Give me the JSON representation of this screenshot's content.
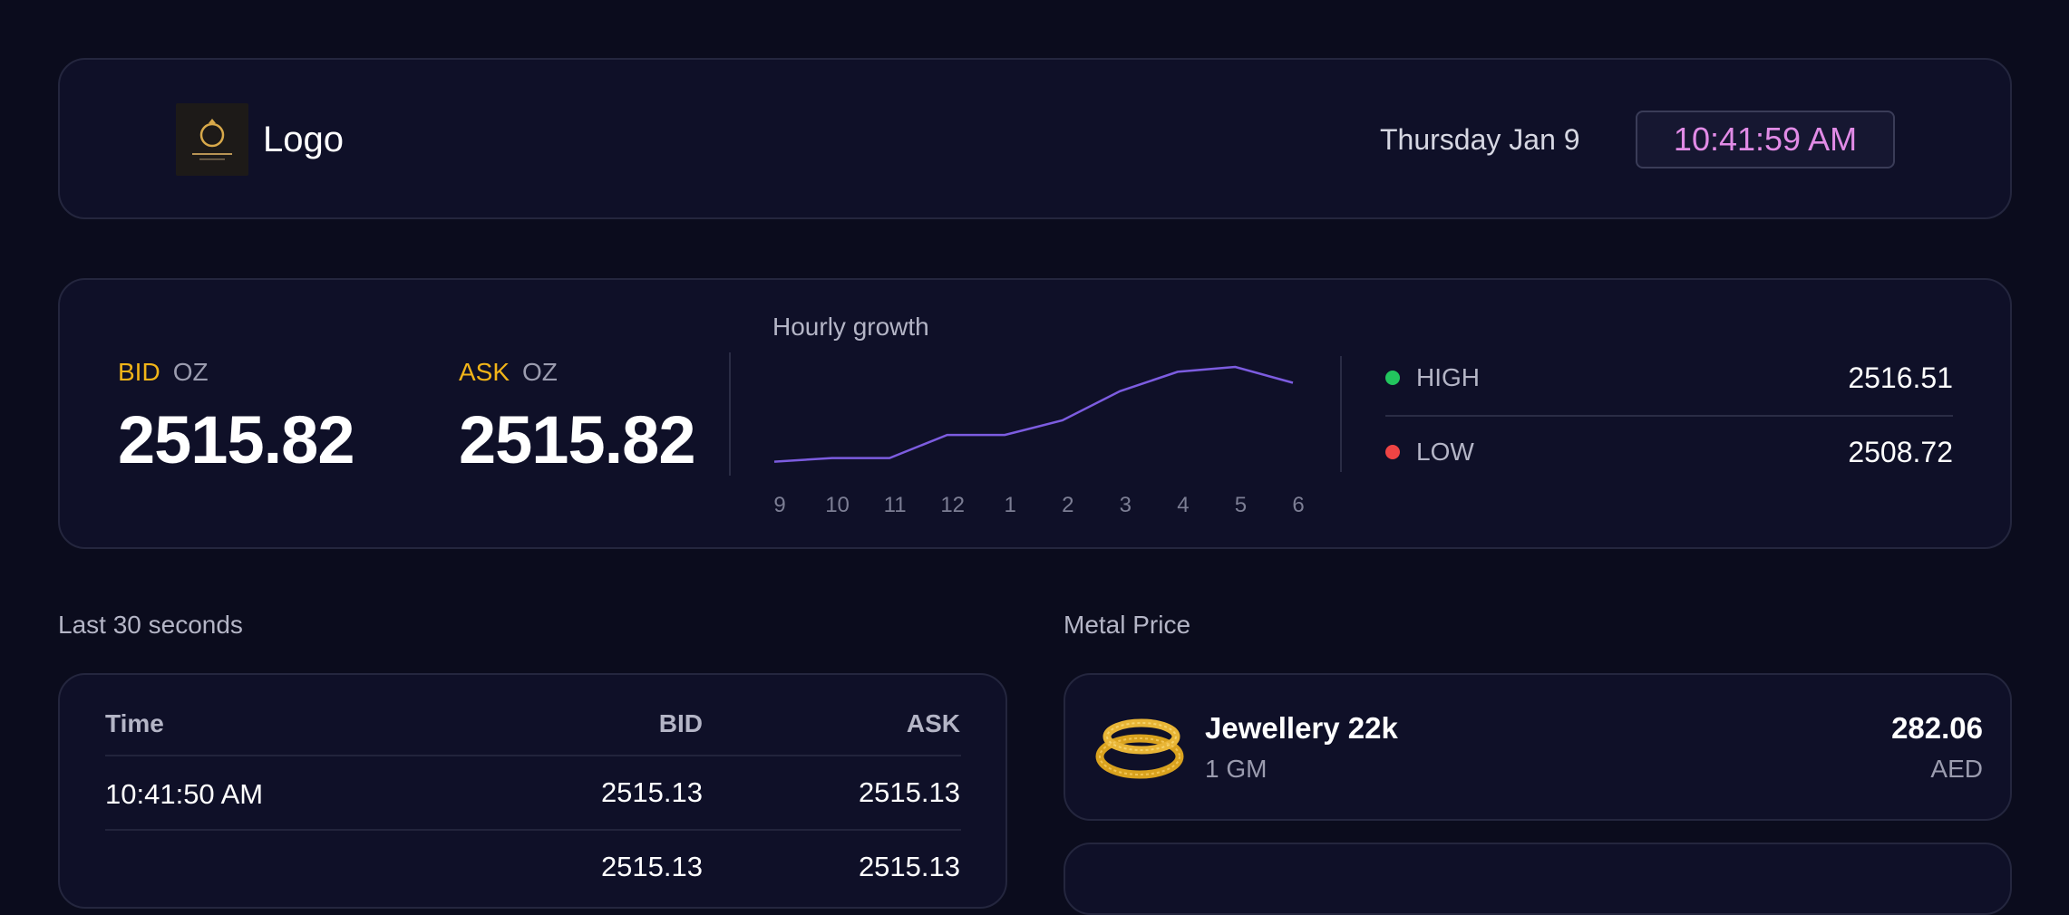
{
  "header": {
    "logo_text": "Logo",
    "date": "Thursday Jan 9",
    "time": "10:41:59 AM"
  },
  "prices": {
    "bid": {
      "label": "BID",
      "unit": "OZ",
      "value": "2515.82"
    },
    "ask": {
      "label": "ASK",
      "unit": "OZ",
      "value": "2515.82"
    },
    "high": {
      "label": "HIGH",
      "value": "2516.51",
      "color": "#22c55e"
    },
    "low": {
      "label": "LOW",
      "value": "2508.72",
      "color": "#ef4444"
    }
  },
  "chart_data": {
    "type": "line",
    "title": "Hourly growth",
    "x": [
      "9",
      "10",
      "11",
      "12",
      "1",
      "2",
      "3",
      "4",
      "5",
      "6"
    ],
    "series": [
      {
        "values": [
          2508.9,
          2509.2,
          2509.2,
          2511.1,
          2511.1,
          2512.3,
          2514.7,
          2516.3,
          2516.7,
          2515.4
        ]
      }
    ],
    "ylim": [
      2508.5,
      2517.0
    ],
    "line_color": "#7c5ce0"
  },
  "history": {
    "title": "Last 30 seconds",
    "headers": {
      "time": "Time",
      "bid": "BID",
      "ask": "ASK"
    },
    "rows": [
      {
        "time": "10:41:50 AM",
        "bid": "2515.13",
        "ask": "2515.13"
      },
      {
        "time": "",
        "bid": "2515.13",
        "ask": "2515.13"
      }
    ]
  },
  "metal": {
    "title": "Metal Price",
    "items": [
      {
        "name": "Jewellery 22k",
        "unit": "1 GM",
        "price": "282.06",
        "currency": "AED",
        "icon": "gold-bangle-icon"
      }
    ]
  }
}
